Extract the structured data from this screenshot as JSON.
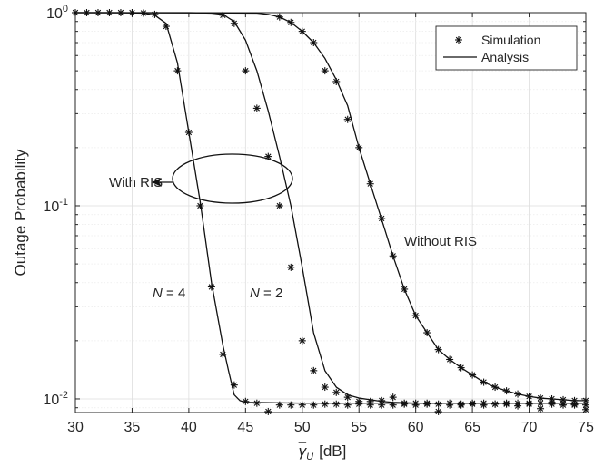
{
  "chart_data": {
    "type": "line",
    "y_scale": "log",
    "grid": true,
    "xlim": [
      30,
      75
    ],
    "ylim": [
      0.0085,
      1
    ],
    "xticks": [
      30,
      35,
      40,
      45,
      50,
      55,
      60,
      65,
      70,
      75
    ],
    "xtick_labels": [
      "30",
      "35",
      "40",
      "45",
      "50",
      "55",
      "60",
      "65",
      "70",
      "75"
    ],
    "yticks": [
      0.01,
      0.1,
      1
    ],
    "ytick_labels": [
      {
        "base": "10",
        "exp": "-2"
      },
      {
        "base": "10",
        "exp": "-1"
      },
      {
        "base": "10",
        "exp": "0"
      }
    ],
    "ylabel": "Outage Probability",
    "xlabel": {
      "symbol": "γ",
      "sub": "U",
      "unit": "[dB]"
    },
    "legend": {
      "position": "top-right",
      "entries": [
        {
          "label": "Simulation",
          "marker": "*"
        },
        {
          "label": "Analysis",
          "marker": "line"
        }
      ]
    },
    "annotations": {
      "with_ris": "With RIS",
      "without_ris": "Without RIS",
      "n4": {
        "var": "N",
        "rest": " = 4"
      },
      "n2": {
        "var": "N",
        "rest": " = 2"
      }
    },
    "series": [
      {
        "kind": "N=4",
        "analysis": {
          "x": [
            30,
            34,
            36,
            37,
            38,
            39,
            40,
            41,
            42,
            43,
            43.5,
            44,
            44.5,
            45,
            50,
            55,
            60,
            65,
            70,
            75
          ],
          "y": [
            1,
            1,
            0.995,
            0.97,
            0.88,
            0.55,
            0.24,
            0.105,
            0.04,
            0.019,
            0.014,
            0.0105,
            0.0098,
            0.0096,
            0.0095,
            0.0095,
            0.0095,
            0.0095,
            0.0095,
            0.0095
          ]
        },
        "simulation": {
          "x": [
            30,
            31,
            32,
            33,
            34,
            35,
            36,
            37,
            38,
            39,
            40,
            41,
            42,
            43,
            44,
            45,
            46,
            47,
            48,
            49,
            50,
            51,
            52,
            53,
            54,
            55,
            56,
            57,
            58,
            59,
            60,
            61,
            62,
            63,
            64,
            65,
            66,
            67,
            68,
            69,
            70,
            71,
            72,
            73,
            74,
            75
          ],
          "y": [
            1,
            1,
            1,
            1,
            1,
            1,
            0.995,
            0.98,
            0.85,
            0.5,
            0.24,
            0.1,
            0.038,
            0.017,
            0.0118,
            0.0097,
            0.0095,
            0.0086,
            0.0093,
            0.0093,
            0.0093,
            0.0093,
            0.0094,
            0.0094,
            0.0093,
            0.0094,
            0.0093,
            0.0093,
            0.0093,
            0.0094,
            0.0093,
            0.0094,
            0.0086,
            0.0093,
            0.0093,
            0.0094,
            0.0093,
            0.0094,
            0.0094,
            0.0092,
            0.0094,
            0.0089,
            0.0094,
            0.0093,
            0.0093,
            0.0088
          ]
        }
      },
      {
        "kind": "N=2",
        "analysis": {
          "x": [
            30,
            40,
            42,
            43,
            44,
            45,
            46,
            47,
            48,
            49,
            50,
            51,
            52,
            53,
            54,
            55,
            56,
            57,
            58,
            60,
            62,
            65,
            70,
            75
          ],
          "y": [
            1,
            1,
            0.995,
            0.98,
            0.9,
            0.72,
            0.5,
            0.31,
            0.18,
            0.1,
            0.048,
            0.022,
            0.014,
            0.0115,
            0.0105,
            0.0101,
            0.0099,
            0.0097,
            0.0096,
            0.0095,
            0.0095,
            0.0095,
            0.0095,
            0.0095
          ]
        },
        "simulation": {
          "x": [
            43,
            44,
            45,
            46,
            47,
            48,
            49,
            50,
            51,
            52,
            53,
            54,
            55,
            56,
            57,
            58,
            59,
            60,
            61,
            62,
            63,
            64,
            65,
            66,
            67,
            68,
            69,
            70,
            71,
            72,
            73,
            74,
            75
          ],
          "y": [
            0.97,
            0.88,
            0.5,
            0.32,
            0.18,
            0.1,
            0.048,
            0.02,
            0.014,
            0.0115,
            0.0108,
            0.0102,
            0.0097,
            0.0097,
            0.0098,
            0.0102,
            0.0095,
            0.0095,
            0.0095,
            0.0094,
            0.0095,
            0.0094,
            0.0095,
            0.0095,
            0.0094,
            0.0095,
            0.0095,
            0.0095,
            0.0095,
            0.0096,
            0.0095,
            0.0094,
            0.0093
          ]
        }
      },
      {
        "kind": "Without RIS",
        "analysis": {
          "x": [
            30,
            46,
            47,
            48,
            49,
            50,
            51,
            52,
            53,
            54,
            55,
            56,
            57,
            58,
            59,
            60,
            61,
            62,
            63,
            64,
            65,
            66,
            67,
            68,
            69,
            70,
            71,
            72,
            73,
            74,
            75
          ],
          "y": [
            1,
            0.995,
            0.98,
            0.95,
            0.89,
            0.8,
            0.7,
            0.58,
            0.45,
            0.33,
            0.2,
            0.13,
            0.085,
            0.055,
            0.037,
            0.027,
            0.022,
            0.018,
            0.016,
            0.0145,
            0.0133,
            0.0122,
            0.0115,
            0.011,
            0.0106,
            0.0103,
            0.0101,
            0.01,
            0.0099,
            0.0098,
            0.0098
          ]
        },
        "simulation": {
          "x": [
            48,
            49,
            50,
            51,
            52,
            53,
            54,
            55,
            56,
            57,
            58,
            59,
            60,
            61,
            62,
            63,
            64,
            65,
            66,
            67,
            68,
            69,
            70,
            71,
            72,
            73,
            74,
            75
          ],
          "y": [
            0.95,
            0.89,
            0.8,
            0.7,
            0.5,
            0.44,
            0.28,
            0.2,
            0.13,
            0.086,
            0.055,
            0.037,
            0.027,
            0.022,
            0.018,
            0.016,
            0.0145,
            0.0133,
            0.0122,
            0.0115,
            0.011,
            0.0106,
            0.0103,
            0.0101,
            0.01,
            0.0099,
            0.0098,
            0.0098
          ]
        }
      }
    ]
  }
}
